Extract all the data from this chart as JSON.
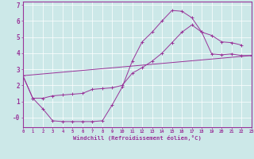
{
  "xlabel": "Windchill (Refroidissement éolien,°C)",
  "xlim": [
    0,
    23
  ],
  "ylim": [
    -0.6,
    7.2
  ],
  "xticks": [
    0,
    1,
    2,
    3,
    4,
    5,
    6,
    7,
    8,
    9,
    10,
    11,
    12,
    13,
    14,
    15,
    16,
    17,
    18,
    19,
    20,
    21,
    22,
    23
  ],
  "yticks": [
    0,
    1,
    2,
    3,
    4,
    5,
    6,
    7
  ],
  "ytick_labels": [
    "-0",
    "1",
    "2",
    "3",
    "4",
    "5",
    "6",
    "7"
  ],
  "bg_color": "#cce8e8",
  "line_color": "#993399",
  "grid_color": "#ffffff",
  "line1_x": [
    0,
    1,
    2,
    3,
    4,
    5,
    6,
    7,
    8,
    9,
    10,
    11,
    12,
    13,
    14,
    15,
    16,
    17,
    18,
    19,
    20,
    21,
    22
  ],
  "line1_y": [
    2.6,
    1.2,
    0.55,
    -0.2,
    -0.25,
    -0.25,
    -0.25,
    -0.25,
    -0.2,
    0.8,
    1.9,
    3.5,
    4.7,
    5.3,
    6.0,
    6.65,
    6.6,
    6.2,
    5.3,
    5.1,
    4.7,
    4.65,
    4.5
  ],
  "line2_x": [
    0,
    1,
    2,
    3,
    4,
    5,
    6,
    7,
    8,
    9,
    10,
    11,
    12,
    13,
    14,
    15,
    16,
    17,
    18,
    19,
    20,
    21,
    22,
    23
  ],
  "line2_y": [
    2.6,
    1.2,
    1.2,
    1.35,
    1.4,
    1.45,
    1.5,
    1.75,
    1.8,
    1.85,
    2.0,
    2.75,
    3.1,
    3.5,
    4.0,
    4.65,
    5.3,
    5.75,
    5.3,
    3.95,
    3.9,
    3.95,
    3.85,
    3.85
  ],
  "line3_x": [
    0,
    23
  ],
  "line3_y": [
    2.6,
    3.85
  ]
}
